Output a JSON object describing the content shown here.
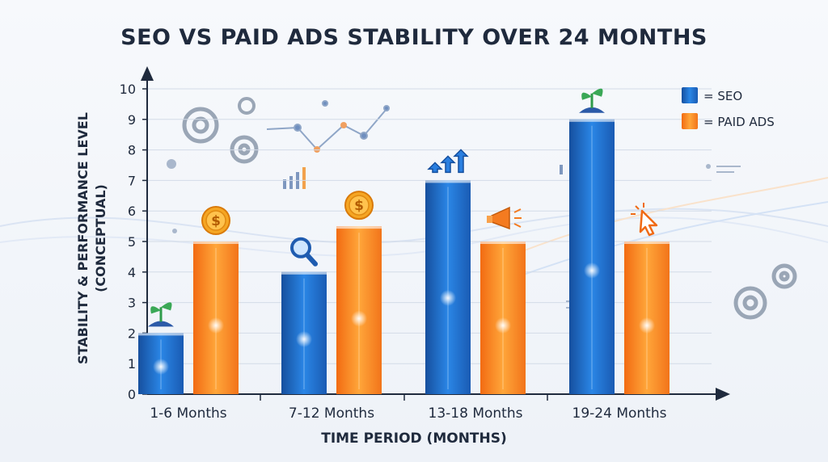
{
  "chart_data": {
    "type": "bar",
    "title": "SEO VS PAID ADS STABILITY OVER 24 MONTHS",
    "xlabel": "TIME PERIOD (MONTHS)",
    "ylabel_line1": "STABILITY & PERFORMANCE LEVEL",
    "ylabel_line2": "(CONCEPTUAL)",
    "categories": [
      "1-6 Months",
      "7-12 Months",
      "13-18 Months",
      "19-24 Months"
    ],
    "ylim": [
      0,
      10
    ],
    "yticks": [
      "0",
      "1",
      "2",
      "3",
      "4",
      "5",
      "6",
      "7",
      "8",
      "9",
      "10"
    ],
    "series": [
      {
        "name": "SEO",
        "legend_label": "= SEO",
        "color": "#1f6fd1",
        "values": [
          2,
          4,
          7,
          9
        ]
      },
      {
        "name": "PAID ADS",
        "legend_label": "= PAID ADS",
        "color": "#f7861f",
        "values": [
          5,
          5.5,
          5,
          5
        ]
      }
    ],
    "grid": true,
    "legend_position": "top-right",
    "bar_icons": {
      "seo": [
        "sprout-icon",
        "magnifier-icon",
        "arrows-up-icon",
        "sprout-icon"
      ],
      "paid": [
        "dollar-coin-icon",
        "dollar-coin-icon",
        "megaphone-icon",
        "cursor-click-icon"
      ]
    }
  }
}
